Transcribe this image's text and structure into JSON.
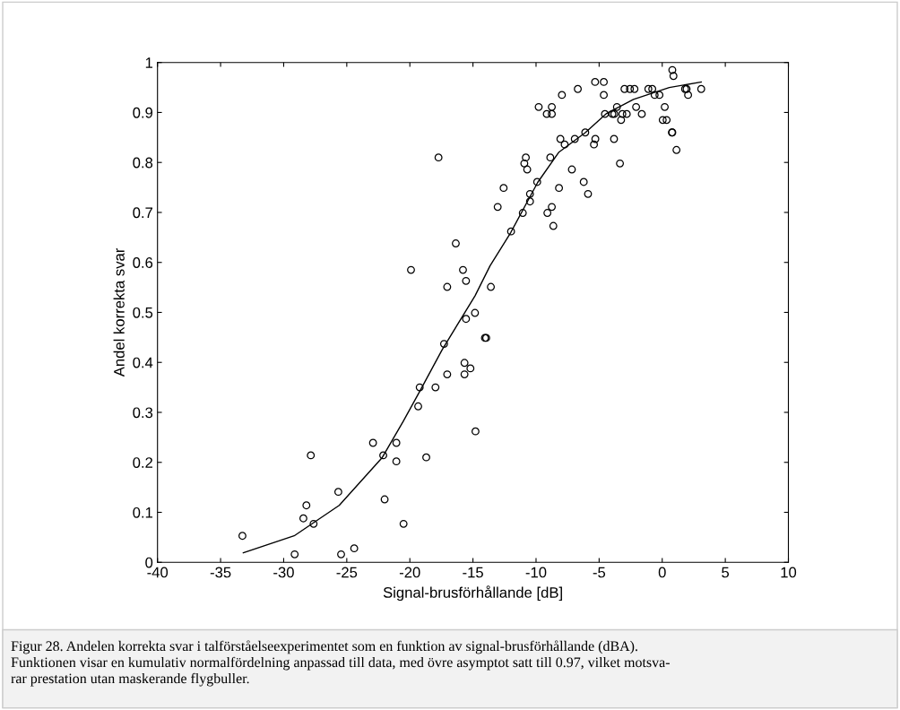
{
  "chart_data": {
    "type": "scatter",
    "xlabel": "Signal-brusförhållande [dB]",
    "ylabel": "Andel korrekta svar",
    "xlim": [
      -40,
      10
    ],
    "xticks": [
      -40,
      -35,
      -30,
      -25,
      -20,
      -15,
      -10,
      -5,
      0,
      5,
      10
    ],
    "ylim": [
      0,
      1
    ],
    "yticks": [
      0,
      0.1,
      0.2,
      0.3,
      0.4,
      0.5,
      0.6,
      0.7,
      0.8,
      0.9,
      1
    ],
    "grid": false,
    "legend": false,
    "marker": "circle",
    "series": [
      {
        "color": "#000000",
        "x": [
          -33.27,
          -29.13,
          -28.44,
          -28.2,
          -27.85,
          -27.63,
          -25.67,
          -25.45,
          -24.41,
          -22.92,
          -22.11,
          -22.0,
          -21.07,
          -21.07,
          -20.5,
          -19.34,
          -19.22,
          -18.7,
          -19.91,
          -17.73,
          -17.97,
          -17.29,
          -17.04,
          -17.04,
          -16.36,
          -15.79,
          -15.67,
          -15.67,
          -15.55,
          -15.55,
          -15.2,
          -14.84,
          -14.8,
          -14.05,
          -13.95,
          -13.58,
          -13.04,
          -12.57,
          -11.98,
          -11.05,
          -10.93,
          -10.81,
          -10.7,
          -10.48,
          -10.48,
          -9.91,
          -9.79,
          -9.15,
          -9.1,
          -8.87,
          -8.75,
          -8.75,
          -8.75,
          -8.63,
          -8.18,
          -8.07,
          -7.95,
          -7.73,
          -7.16,
          -6.93,
          -6.69,
          -6.22,
          -6.1,
          -5.88,
          -5.41,
          -5.32,
          -5.3,
          -4.63,
          -4.63,
          -4.54,
          -3.95,
          -3.82,
          -3.8,
          -3.59,
          -3.35,
          -3.26,
          -3.16,
          -2.99,
          -2.81,
          -2.56,
          -2.2,
          -2.07,
          -1.62,
          -1.1,
          -0.79,
          -0.6,
          -0.22,
          0.04,
          0.2,
          0.35,
          0.77,
          0.8,
          0.8,
          0.89,
          1.13,
          1.81,
          1.93,
          2.05,
          3.09
        ],
        "values": [
          0.053,
          0.016,
          0.088,
          0.114,
          0.214,
          0.077,
          0.141,
          0.016,
          0.028,
          0.239,
          0.214,
          0.126,
          0.239,
          0.202,
          0.077,
          0.312,
          0.35,
          0.21,
          0.585,
          0.81,
          0.35,
          0.437,
          0.551,
          0.376,
          0.638,
          0.585,
          0.399,
          0.376,
          0.563,
          0.487,
          0.388,
          0.499,
          0.262,
          0.449,
          0.449,
          0.551,
          0.711,
          0.749,
          0.662,
          0.699,
          0.798,
          0.81,
          0.786,
          0.737,
          0.722,
          0.761,
          0.911,
          0.897,
          0.699,
          0.81,
          0.911,
          0.897,
          0.711,
          0.673,
          0.749,
          0.847,
          0.935,
          0.836,
          0.786,
          0.847,
          0.947,
          0.761,
          0.86,
          0.737,
          0.836,
          0.961,
          0.847,
          0.961,
          0.935,
          0.897,
          0.897,
          0.847,
          0.897,
          0.911,
          0.798,
          0.885,
          0.897,
          0.947,
          0.897,
          0.947,
          0.947,
          0.911,
          0.897,
          0.947,
          0.947,
          0.935,
          0.935,
          0.885,
          0.911,
          0.885,
          0.86,
          0.985,
          0.86,
          0.973,
          0.825,
          0.947,
          0.947,
          0.935,
          0.947
        ]
      },
      {
        "type": "line",
        "color": "#000000",
        "marker": "none",
        "line_style": "solid",
        "x": [
          -33.2,
          -29.17,
          -25.6,
          -22.18,
          -20.53,
          -19.22,
          -17.45,
          -14.84,
          -13.65,
          -12.0,
          -9.87,
          -8.21,
          -6.08,
          -4.41,
          -2.28,
          0.56,
          3.09
        ],
        "values": [
          0.019,
          0.053,
          0.114,
          0.21,
          0.282,
          0.342,
          0.425,
          0.533,
          0.593,
          0.66,
          0.76,
          0.82,
          0.86,
          0.898,
          0.926,
          0.95,
          0.961
        ]
      }
    ],
    "annotations": [
      "Figur 28. Andelen korrekta svar i talförståelseexperimentet som en funktion av signal-brusförhållande (dBA).\nFunktionen visar en kumulativ normalfördelning anpassad till data, med övre asymptot satt till 0.97, vilket motsva-\nrar prestation utan maskerande flygbuller."
    ]
  }
}
